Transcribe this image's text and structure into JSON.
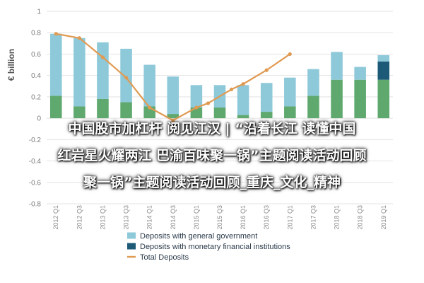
{
  "chart_data": {
    "type": "bar",
    "stacked": true,
    "categories": [
      "2012 Q1",
      "2012 Q3",
      "2013 Q1",
      "2013 Q3",
      "2014 Q1",
      "2014 Q3",
      "2015 Q1",
      "2015 Q3",
      "2016 Q1",
      "2016 Q3",
      "2017 Q1",
      "2017 Q3",
      "2018 Q1",
      "2018 Q3",
      "2019 Q1"
    ],
    "series": [
      {
        "name": "Deposits with general government",
        "color": "#8ec9da",
        "values": [
          0.58,
          0.64,
          0.53,
          0.5,
          0.39,
          0.35,
          0.21,
          0.21,
          0.28,
          0.27,
          0.27,
          0.25,
          0.26,
          0.12,
          0.06
        ]
      },
      {
        "name": "Deposits with monetary financial institutions",
        "color": "#1d5a78",
        "values": [
          0,
          0,
          0,
          0,
          0,
          0,
          0,
          0,
          0,
          0,
          0,
          0,
          0,
          0,
          0.17
        ]
      },
      {
        "name": "green base",
        "color": "#5fa86e",
        "legend": false,
        "values": [
          0.21,
          0.11,
          0.18,
          0.15,
          0.11,
          0.04,
          0.1,
          0.1,
          0.03,
          0.06,
          0.11,
          0.21,
          0.36,
          0.36,
          0.36
        ]
      }
    ],
    "line": {
      "name": "Total Deposits",
      "color": "#e09a52",
      "values": [
        0.79,
        0.75,
        0.57,
        0.38,
        0.1,
        -0.02,
        0.1,
        0.14,
        0.27,
        0.32,
        0.45,
        0.6
      ]
    },
    "line_x_index": [
      0,
      2,
      4,
      6,
      8,
      10,
      12,
      13,
      15,
      16,
      18,
      20
    ],
    "ylabel": "€ billion",
    "ylim": [
      -0.8,
      1.0
    ],
    "yticks": [
      1,
      0.8,
      0.6,
      0.4,
      0.2,
      0,
      -0.2,
      -0.4,
      -0.6,
      -0.8
    ],
    "grid": true,
    "legend_position": "bottom"
  },
  "overlay": {
    "line1": "中国股市加杠杆 阅见江汉 | “沿着长江 读懂中国",
    "line2": "红岩星火耀两江 巴渝百味聚一锅”主题阅读活动回顾",
    "line3": "聚一锅”主题阅读活动回顾_重庆_文化_精神"
  }
}
